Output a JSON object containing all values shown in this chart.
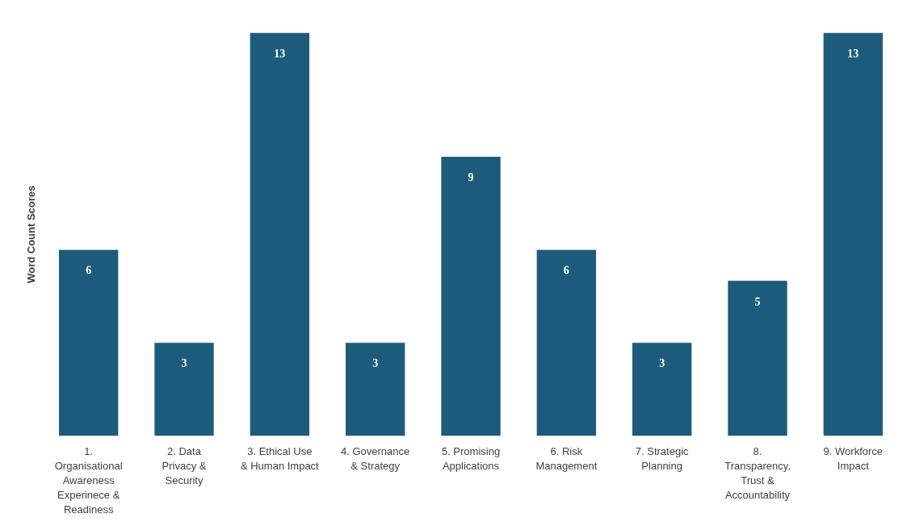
{
  "chart_data": {
    "type": "bar",
    "ylabel": "Word Count Scores",
    "categories": [
      "1. Organisational Awareness Experinece & Readiness",
      "2. Data Privacy & Security",
      "3. Ethical Use & Human Impact",
      "4. Governance & Strategy",
      "5. Promising Applications",
      "6. Risk Management",
      "7. Strategic Planning",
      "8. Transparency, Trust & Accountability",
      "9. Workforce Impact"
    ],
    "values": [
      6,
      3,
      13,
      3,
      9,
      6,
      3,
      5,
      13
    ],
    "color": "#1d5b7c",
    "ylim": [
      0,
      13
    ],
    "data_labels": true,
    "grid": false,
    "tick_labels": "x"
  }
}
